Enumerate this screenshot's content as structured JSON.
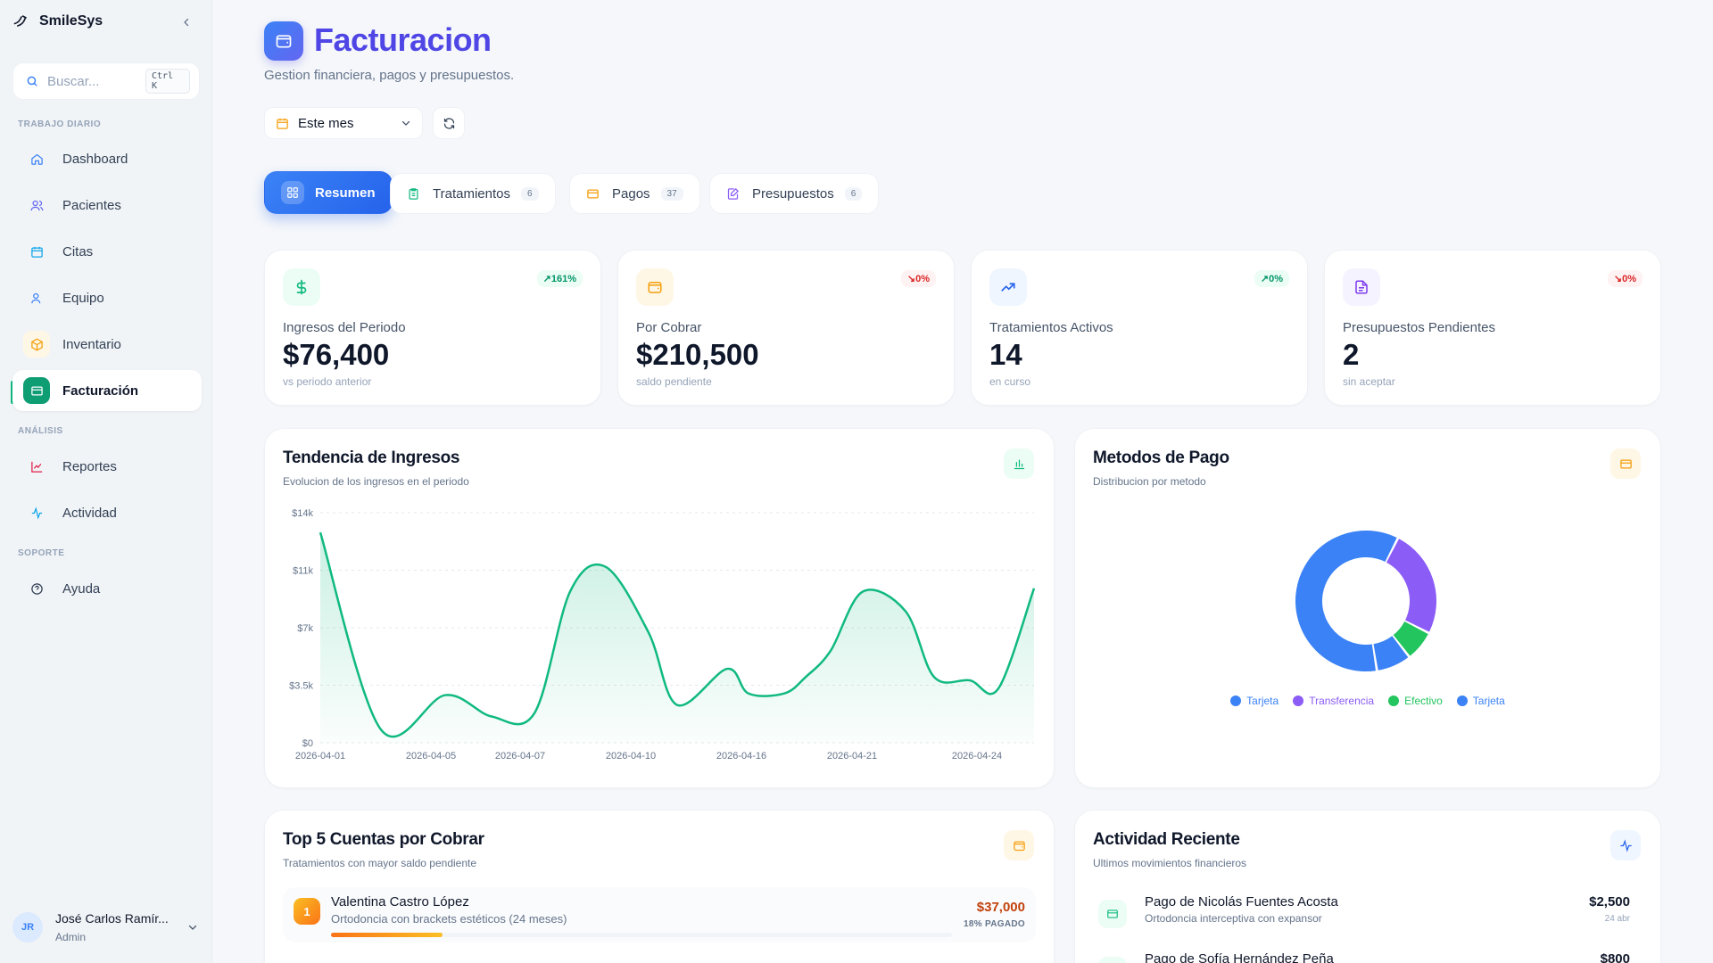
{
  "sidebar": {
    "brand": "SmileSys",
    "search_placeholder": "Buscar...",
    "search_shortcut": "Ctrl K",
    "sections": {
      "daily": "TRABAJO DIARIO",
      "analysis": "ANÁLISIS",
      "support": "SOPORTE"
    },
    "items": [
      {
        "label": "Dashboard",
        "icon": "home-icon"
      },
      {
        "label": "Pacientes",
        "icon": "users-icon"
      },
      {
        "label": "Citas",
        "icon": "calendar-icon"
      },
      {
        "label": "Equipo",
        "icon": "user-icon"
      },
      {
        "label": "Inventario",
        "icon": "box-icon"
      },
      {
        "label": "Facturación",
        "icon": "credit-card-icon"
      },
      {
        "label": "Reportes",
        "icon": "line-chart-icon"
      },
      {
        "label": "Actividad",
        "icon": "activity-icon"
      },
      {
        "label": "Ayuda",
        "icon": "help-circle-icon"
      }
    ],
    "user": {
      "initials": "JR",
      "name": "José Carlos Ramír...",
      "role": "Admin"
    }
  },
  "header": {
    "title": "Facturacion",
    "subtitle": "Gestion financiera, pagos y presupuestos.",
    "period": "Este mes"
  },
  "tabs": [
    {
      "label": "Resumen",
      "count": ""
    },
    {
      "label": "Tratamientos",
      "count": "6"
    },
    {
      "label": "Pagos",
      "count": "37"
    },
    {
      "label": "Presupuestos",
      "count": "6"
    }
  ],
  "stats": [
    {
      "label": "Ingresos del Periodo",
      "value": "$76,400",
      "note": "vs periodo anterior",
      "badge": "↗161%",
      "trend": "up"
    },
    {
      "label": "Por Cobrar",
      "value": "$210,500",
      "note": "saldo pendiente",
      "badge": "↘0%",
      "trend": "down"
    },
    {
      "label": "Tratamientos Activos",
      "value": "14",
      "note": "en curso",
      "badge": "↗0%",
      "trend": "up"
    },
    {
      "label": "Presupuestos Pendientes",
      "value": "2",
      "note": "sin aceptar",
      "badge": "↘0%",
      "trend": "down"
    }
  ],
  "revenue_card": {
    "title": "Tendencia de Ingresos",
    "subtitle": "Evolucion de los ingresos en el periodo"
  },
  "methods_card": {
    "title": "Metodos de Pago",
    "subtitle": "Distribucion por metodo"
  },
  "accounts_card": {
    "title": "Top 5 Cuentas por Cobrar",
    "subtitle": "Tratamientos con mayor saldo pendiente",
    "rows": [
      {
        "rank": "1",
        "name": "Valentina Castro López",
        "treatment": "Ortodoncia con brackets estéticos (24 meses)",
        "amount": "$37,000",
        "paid": "18% PAGADO",
        "paid_fraction": 0.18
      }
    ]
  },
  "activity_card": {
    "title": "Actividad Reciente",
    "subtitle": "Ultimos movimientos financieros",
    "rows": [
      {
        "title": "Pago de Nicolás Fuentes Acosta",
        "desc": "Ortodoncia interceptiva con expansor",
        "amount": "$2,500",
        "date": "24 abr"
      },
      {
        "title": "Pago de Sofía Hernández Peña",
        "desc": "",
        "amount": "$800",
        "date": ""
      }
    ]
  },
  "chart_data": [
    {
      "type": "area",
      "title": "Tendencia de Ingresos",
      "x_tick_labels": [
        "2026-04-01",
        "2026-04-05",
        "2026-04-07",
        "2026-04-10",
        "2026-04-16",
        "2026-04-21",
        "2026-04-24"
      ],
      "y_tick_labels": [
        "$0",
        "$3.5k",
        "$7k",
        "$11k",
        "$14k"
      ],
      "ylim": [
        0,
        14000
      ],
      "x": [
        0,
        0.85,
        1.75,
        2.4,
        3.0,
        3.5,
        4.0,
        4.6,
        5.0,
        5.7,
        6.0,
        6.5,
        6.8,
        7.15,
        7.6,
        8.2,
        8.6,
        9.1,
        9.5,
        10.0
      ],
      "values": [
        12800,
        800,
        2900,
        1600,
        1800,
        9200,
        10700,
        6700,
        2300,
        4500,
        3000,
        3000,
        4000,
        5600,
        9200,
        8000,
        4000,
        3800,
        3300,
        9400
      ],
      "color": "#10b981",
      "grid": true
    },
    {
      "type": "pie",
      "title": "Metodos de Pago",
      "donut": true,
      "labels": [
        "Tarjeta",
        "Transferencia",
        "Efectivo",
        "Tarjeta"
      ],
      "values": [
        60,
        25,
        7,
        8
      ],
      "colors": [
        "#3b82f6",
        "#8b5cf6",
        "#22c55e",
        "#3b82f6"
      ],
      "legend": "bottom"
    }
  ]
}
